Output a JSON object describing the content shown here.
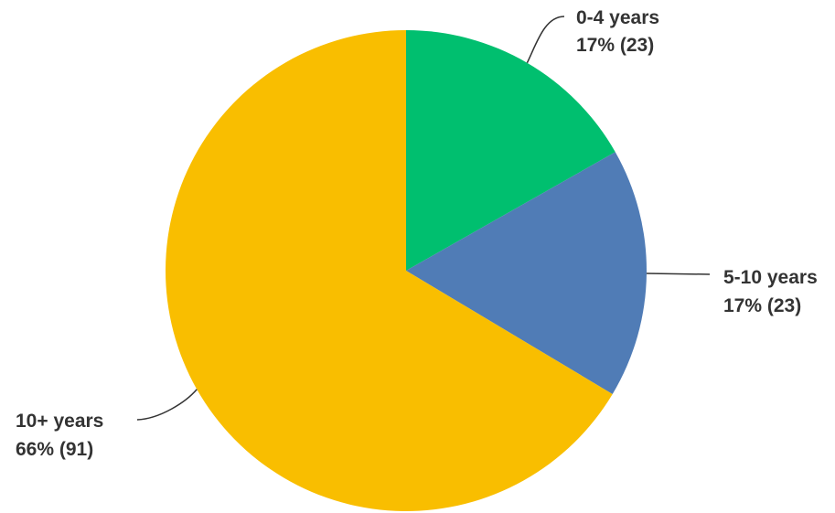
{
  "chart_data": {
    "type": "pie",
    "title": "",
    "categories": [
      "0-4 years",
      "5-10 years",
      "10+ years"
    ],
    "percent_labels": [
      "17% (23)",
      "17% (23)",
      "66% (91)"
    ],
    "percentages": [
      17,
      17,
      66
    ],
    "counts": [
      23,
      23,
      91
    ],
    "colors": [
      "#00BF6F",
      "#507CB6",
      "#F9BE00"
    ],
    "start_angle": "12 o'clock, clockwise",
    "legend": "none"
  }
}
